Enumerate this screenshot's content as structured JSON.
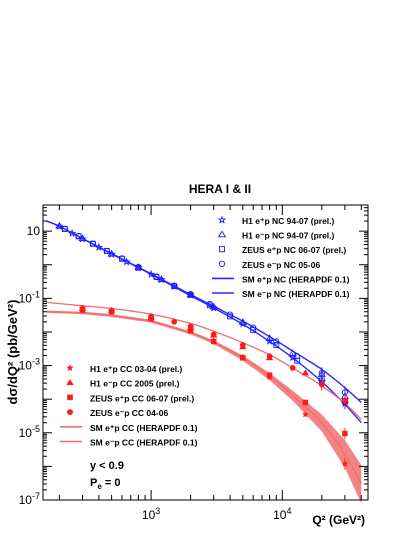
{
  "chart_data": {
    "type": "scatter",
    "title": "HERA I & II",
    "xlabel": "Q² (GeV²)",
    "ylabel": "dσ/dQ² (pb/GeV²)",
    "xscale": "log",
    "yscale": "log",
    "xlim": [
      150,
      45000
    ],
    "ylim": [
      1e-07,
      60
    ],
    "x_ticks": [
      {
        "value": 1000,
        "label": "10",
        "exp": "3"
      },
      {
        "value": 10000,
        "label": "10",
        "exp": "4"
      }
    ],
    "y_ticks": [
      {
        "value": 10,
        "label": "10"
      },
      {
        "value": 0.1,
        "label": "10",
        "exp": "-1"
      },
      {
        "value": 0.001,
        "label": "10",
        "exp": "-3"
      },
      {
        "value": 1e-05,
        "label": "10",
        "exp": "-5"
      },
      {
        "value": 1e-07,
        "label": "10",
        "exp": "-7"
      }
    ],
    "series": [
      {
        "name": "H1 e⁺p NC 94-07 (prel.)",
        "marker": "star-open",
        "color": "#1a1aff",
        "x": [
          200,
          250,
          300,
          400,
          500,
          650,
          800,
          1000,
          1200,
          1500,
          2000,
          3000,
          5000,
          8000,
          12000,
          20000,
          30000
        ],
        "y": [
          14.0,
          8.6,
          5.9,
          3.3,
          2.05,
          1.22,
          0.82,
          0.52,
          0.36,
          0.23,
          0.125,
          0.052,
          0.0175,
          0.0053,
          0.00175,
          0.00034,
          7.5e-05
        ]
      },
      {
        "name": "H1 e⁻p NC 94-07 (prel.)",
        "marker": "triangle-open",
        "color": "#1a1aff",
        "x": [
          200,
          300,
          500,
          800,
          1200,
          2000,
          3000,
          5000,
          8000,
          12000,
          20000,
          30000
        ],
        "y": [
          14.2,
          6.0,
          2.1,
          0.84,
          0.37,
          0.13,
          0.056,
          0.0195,
          0.0065,
          0.0023,
          0.00055,
          0.00012
        ]
      },
      {
        "name": "ZEUS e⁺p NC 06-07 (prel.)",
        "marker": "square-open",
        "color": "#1a1aff",
        "x": [
          220,
          280,
          360,
          460,
          600,
          800,
          1100,
          1500,
          2000,
          2800,
          4000,
          6000,
          9000,
          13000,
          20000,
          30000
        ],
        "y": [
          11.6,
          7.0,
          4.2,
          2.55,
          1.5,
          0.82,
          0.43,
          0.23,
          0.127,
          0.062,
          0.029,
          0.0115,
          0.0041,
          0.0014,
          0.00036,
          8.5e-05
        ]
      },
      {
        "name": "ZEUS e⁻p NC 05-06",
        "marker": "circle-open",
        "color": "#1a1aff",
        "x": [
          220,
          280,
          360,
          460,
          600,
          800,
          1100,
          1500,
          2000,
          2800,
          4000,
          6000,
          9000,
          13000,
          20000,
          30000
        ],
        "y": [
          11.8,
          7.2,
          4.3,
          2.6,
          1.55,
          0.85,
          0.45,
          0.24,
          0.133,
          0.068,
          0.033,
          0.0135,
          0.0052,
          0.0019,
          0.0006,
          0.00016
        ]
      },
      {
        "name": "H1 e⁺p CC 03-04 (prel.)",
        "marker": "star-filled",
        "color": "#ff1a1a",
        "x": [
          300,
          500,
          1000,
          2000,
          3000,
          5000,
          8000,
          15000,
          30000
        ],
        "y": [
          0.05,
          0.042,
          0.025,
          0.0105,
          0.0055,
          0.0018,
          0.00045,
          3.5e-05,
          1.2e-06
        ]
      },
      {
        "name": "H1 e⁻p CC 2005 (prel.)",
        "marker": "triangle-filled",
        "color": "#ff1a1a",
        "x": [
          300,
          500,
          1000,
          2000,
          3000,
          5000,
          8000,
          15000,
          30000
        ],
        "y": [
          0.05,
          0.044,
          0.027,
          0.0135,
          0.008,
          0.0036,
          0.0017,
          0.0006,
          9.5e-05
        ]
      },
      {
        "name": "ZEUS e⁺p CC 06-07 (prel.)",
        "marker": "square-filled",
        "color": "#ff1a1a",
        "x": [
          300,
          500,
          1000,
          2000,
          3000,
          5000,
          8000,
          15000,
          30000
        ],
        "y": [
          0.045,
          0.04,
          0.025,
          0.011,
          0.0052,
          0.0017,
          0.00052,
          8e-05,
          9.5e-06
        ]
      },
      {
        "name": "ZEUS e⁻p CC 04-06",
        "marker": "circle-filled",
        "color": "#ff1a1a",
        "x": [
          300,
          500,
          1000,
          1500,
          2000,
          3000,
          5000,
          8000,
          12000,
          20000,
          30000
        ],
        "y": [
          0.05,
          0.043,
          0.029,
          0.02,
          0.0145,
          0.0085,
          0.0041,
          0.0019,
          0.00085,
          0.00027,
          9e-05
        ]
      }
    ],
    "curves": [
      {
        "name": "SM e⁺p NC (HERAPDF 0.1)",
        "color": "#2a2aff",
        "width": 1.4,
        "x": [
          160,
          200,
          300,
          500,
          1000,
          2000,
          3000,
          5000,
          8000,
          12000,
          20000,
          30000,
          40000
        ],
        "y": [
          20,
          14,
          6,
          2.1,
          0.52,
          0.12,
          0.052,
          0.017,
          0.0052,
          0.0017,
          0.00033,
          7e-05,
          2e-05
        ]
      },
      {
        "name": "SM e⁻p NC (HERAPDF 0.1)",
        "color": "#2a2aff",
        "width": 1.4,
        "x": [
          160,
          200,
          300,
          500,
          1000,
          2000,
          3000,
          5000,
          8000,
          12000,
          20000,
          30000,
          40000
        ],
        "y": [
          20,
          14,
          6.05,
          2.15,
          0.54,
          0.13,
          0.058,
          0.021,
          0.0073,
          0.0027,
          0.00077,
          0.00022,
          8e-05
        ]
      },
      {
        "name": "SM e⁺p CC (HERAPDF 0.1)",
        "color": "#f26d6d",
        "width": 1.3,
        "band": true,
        "x": [
          160,
          300,
          500,
          1000,
          2000,
          3000,
          5000,
          8000,
          12000,
          20000,
          30000,
          40000
        ],
        "y": [
          0.04,
          0.037,
          0.031,
          0.021,
          0.0095,
          0.005,
          0.0017,
          0.00048,
          0.00013,
          2e-05,
          2.3e-06,
          3e-07
        ],
        "band_hi": [
          0.043,
          0.04,
          0.034,
          0.023,
          0.0105,
          0.0056,
          0.002,
          0.0006,
          0.00018,
          3.5e-05,
          6e-06,
          1.1e-06
        ],
        "band_lo": [
          0.037,
          0.034,
          0.028,
          0.019,
          0.0085,
          0.0044,
          0.0014,
          0.00037,
          9e-05,
          1.1e-05,
          9e-07,
          8e-08
        ]
      },
      {
        "name": "SM e⁻p CC (HERAPDF 0.1)",
        "color": "#f26d6d",
        "width": 1.3,
        "x": [
          160,
          300,
          500,
          1000,
          2000,
          3000,
          5000,
          8000,
          12000,
          20000,
          30000,
          40000
        ],
        "y": [
          0.076,
          0.06,
          0.05,
          0.034,
          0.018,
          0.0105,
          0.0048,
          0.0021,
          0.00085,
          0.00025,
          7.5e-05,
          2.5e-05
        ]
      }
    ],
    "legend_nc": {
      "position": "top-right",
      "entries": [
        "H1 e⁺p NC 94-07 (prel.)",
        "H1 e⁻p NC 94-07 (prel.)",
        "ZEUS e⁺p NC 06-07 (prel.)",
        "ZEUS e⁻p NC 05-06",
        "SM e⁺p NC (HERAPDF 0.1)",
        "SM e⁻p NC (HERAPDF 0.1)"
      ]
    },
    "legend_cc": {
      "position": "bottom-left",
      "entries": [
        "H1 e⁺p CC 03-04 (prel.)",
        "H1 e⁻p CC 2005 (prel.)",
        "ZEUS e⁺p CC 06-07 (prel.)",
        "ZEUS e⁻p CC 04-06",
        "SM e⁺p CC (HERAPDF 0.1)",
        "SM e⁻p CC (HERAPDF 0.1)"
      ]
    },
    "annotations": {
      "cut": "y < 0.9",
      "pol_symbol": "P",
      "pol_sub": "e",
      "pol_value": " = 0"
    }
  }
}
